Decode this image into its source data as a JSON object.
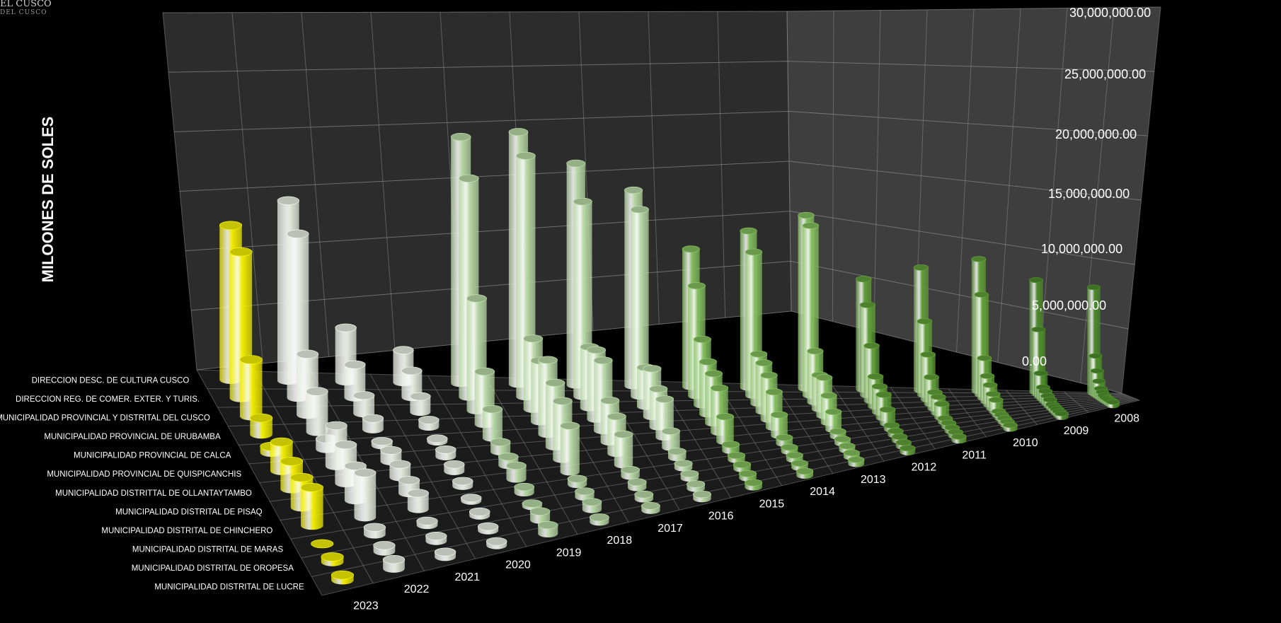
{
  "logo": {
    "line1": "EL CUSCO",
    "line2": "DEL CUSCO"
  },
  "colors": {
    "background": "#000000",
    "wall_left": "#2c2c2c",
    "wall_back": "#323232",
    "wall_right": "#3e3e3e",
    "gridline": "#8a8a8a",
    "yellow": "#f0ec00",
    "white": "#e3eadd",
    "light_green": "#b6d6a4",
    "mid_green": "#82bb5d",
    "green": "#5f9c38",
    "dark_green": "#4c8a2c"
  },
  "chart_data": {
    "type": "bar3d",
    "title": "",
    "ylabel": "MILOONES DE SOLES",
    "ylim": [
      0,
      30000000
    ],
    "yticks": [
      "0.00",
      "5,000,000.00",
      "10,000,000.00",
      "15,000,000.00",
      "20,000,000.00",
      "25,000,000.00",
      "30,000,000.00"
    ],
    "years": [
      "2023",
      "2022",
      "2021",
      "2020",
      "2019",
      "2018",
      "2017",
      "2016",
      "2015",
      "2014",
      "2013",
      "2012",
      "2011",
      "2010",
      "2009",
      "2008"
    ],
    "entities": [
      "DIRECCION DESC. DE CULTURA CUSCO",
      "DIRECCION REG. DE COMER. EXTER. Y TURIS.",
      "MUNICIPALIDAD PROVINCIAL Y DISTRITAL DEL CUSCO",
      "MUNICIPALIDAD PROVINCIAL DE URUBAMBA",
      "MUNICIPALIDAD PROVINCIAL DE CALCA",
      "MUNICIPALIDAD PROVINCIAL DE QUISPICANCHIS",
      "MUNICIPALIDAD DISTRITTAL DE OLLANTAYTAMBO",
      "MUNICIPALIDAD DISTRITAL DE PISAQ",
      "MUNICIPALIDAD DISTRITAL DE CHINCHERO",
      "MUNICIPALIDAD DISTRITAL DE MARAS",
      "MUNICIPALIDAD DISTRITAL DE OROPESA",
      "MUNICIPALIDAD DISTRITAL DE LUCRE"
    ],
    "series": [
      {
        "year": "2023",
        "values": [
          15000000,
          14200000,
          5500000,
          1600000,
          600000,
          2800000,
          2700000,
          2900000,
          3700000,
          0,
          500000,
          500000
        ]
      },
      {
        "year": "2022",
        "values": [
          17800000,
          16200000,
          6000000,
          4000000,
          1000000,
          4000000,
          3800000,
          3400000,
          4400000,
          700000,
          600000,
          900000
        ]
      },
      {
        "year": "2021",
        "values": [
          5400000,
          3300000,
          1800000,
          1100000,
          400000,
          1100000,
          1300000,
          1300000,
          1600000,
          400000,
          500000,
          500000
        ]
      },
      {
        "year": "2020",
        "values": [
          3300000,
          2700000,
          1600000,
          700000,
          300000,
          700000,
          700000,
          500000,
          300000,
          400000,
          400000,
          400000
        ]
      },
      {
        "year": "2019",
        "values": [
          25700000,
          22800000,
          11700000,
          5500000,
          3000000,
          1000000,
          900000,
          1400000,
          600000,
          300000,
          900000,
          900000
        ]
      },
      {
        "year": "2018",
        "values": [
          26800000,
          25600000,
          7500000,
          6500000,
          7900000,
          6800000,
          6200000,
          4900000,
          600000,
          600000,
          800000,
          500000
        ]
      },
      {
        "year": "2017",
        "values": [
          24000000,
          21100000,
          6600000,
          7500000,
          7600000,
          4500000,
          4000000,
          3300000,
          700000,
          600000,
          500000,
          500000
        ]
      },
      {
        "year": "2016",
        "values": [
          21600000,
          20600000,
          4300000,
          5300000,
          4200000,
          4200000,
          1800000,
          700000,
          500000,
          500000,
          500000,
          500000
        ]
      },
      {
        "year": "2015",
        "values": [
          15500000,
          12400000,
          7400000,
          5900000,
          5600000,
          5000000,
          2800000,
          700000,
          500000,
          500000,
          500000,
          500000
        ]
      },
      {
        "year": "2014",
        "values": [
          18000000,
          16500000,
          5700000,
          5600000,
          5100000,
          4100000,
          2400000,
          700000,
          500000,
          500000,
          500000,
          500000
        ]
      },
      {
        "year": "2013",
        "values": [
          20300000,
          19900000,
          6000000,
          4000000,
          4500000,
          3200000,
          2100000,
          600000,
          500000,
          500000,
          500000,
          500000
        ]
      },
      {
        "year": "2012",
        "values": [
          13200000,
          10800000,
          6600000,
          3600000,
          3100000,
          2800000,
          1700000,
          500000,
          500000,
          500000,
          500000,
          500000
        ]
      },
      {
        "year": "2011",
        "values": [
          15000000,
          9000000,
          5500000,
          3300000,
          2000000,
          2000000,
          1700000,
          500000,
          500000,
          500000,
          500000,
          500000
        ]
      },
      {
        "year": "2010",
        "values": [
          16500000,
          12500000,
          5000000,
          3200000,
          2500000,
          1800000,
          1500000,
          500000,
          500000,
          500000,
          500000,
          500000
        ]
      },
      {
        "year": "2009",
        "values": [
          14300000,
          8300000,
          3000000,
          1500000,
          1300000,
          1000000,
          800000,
          500000,
          500000,
          500000,
          500000,
          500000
        ]
      },
      {
        "year": "2008",
        "values": [
          13800000,
          5000000,
          3200000,
          2000000,
          1200000,
          900000,
          600000,
          500000,
          500000,
          500000,
          500000,
          500000
        ]
      }
    ],
    "series_colors": [
      "yellow",
      "white",
      "white",
      "white",
      "light_green",
      "light_green",
      "light_green",
      "light_green",
      "mid_green",
      "mid_green",
      "mid_green",
      "green",
      "green",
      "green",
      "dark_green",
      "dark_green"
    ],
    "grid": true,
    "legend": "none"
  }
}
